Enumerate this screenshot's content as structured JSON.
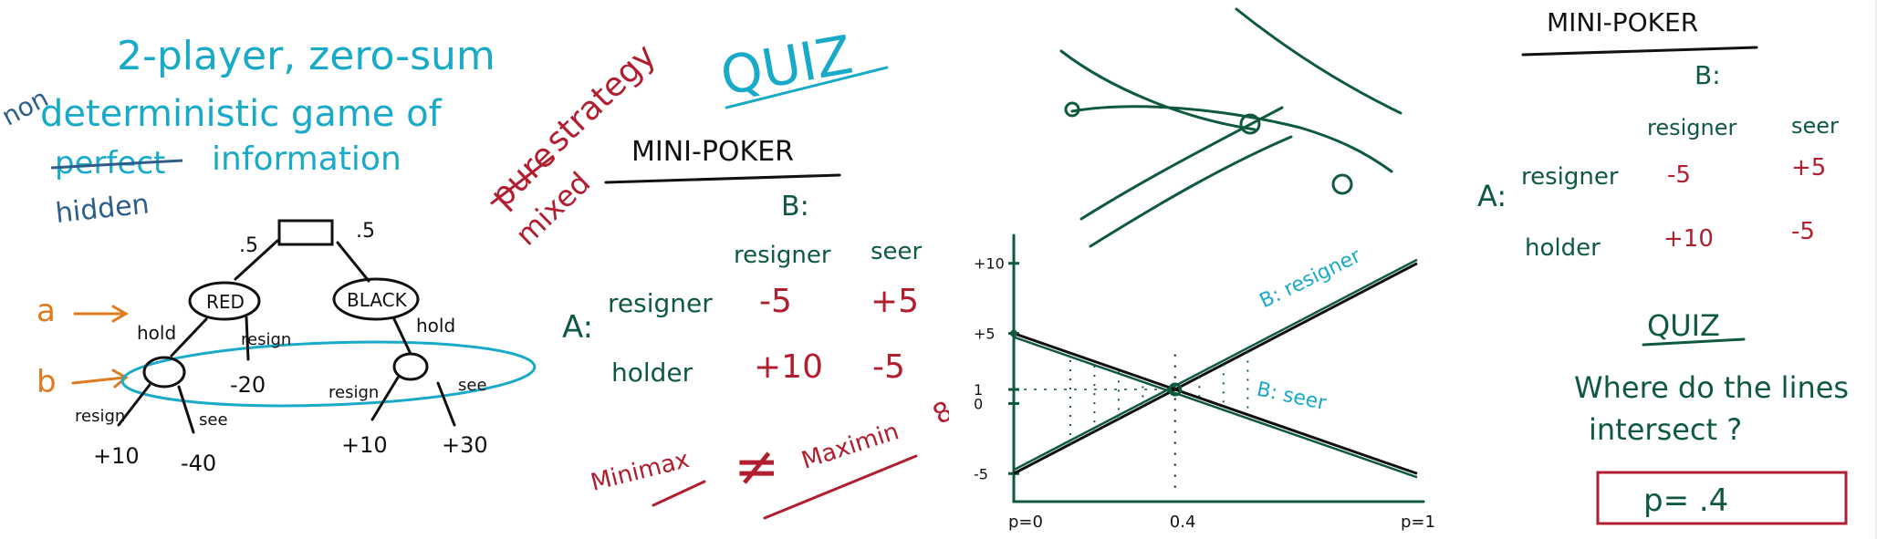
{
  "left": {
    "title_line1": "2-player, zero-sum",
    "title_line2_prefix": "non",
    "title_line2": "deterministic game of",
    "title_line3_struck": "perfect",
    "title_line3": "information",
    "hidden_note": "hidden",
    "pure_struck": "pure",
    "strategy": "strategy",
    "mixed": "mixed",
    "quiz": "QUIZ",
    "tree": {
      "root_prob_left": ".5",
      "root_prob_right": ".5",
      "node_red": "RED",
      "node_black": "BLACK",
      "label_a": "a",
      "label_b": "b",
      "red_hold": "hold",
      "red_resign": "resign",
      "red_resign_payoff": "-20",
      "black_hold": "hold",
      "b_resign_left": "resign",
      "b_see_left": "see",
      "b_resign_right": "resign",
      "b_see_right": "see",
      "payoff_1": "+10",
      "payoff_2": "-40",
      "payoff_3": "+10",
      "payoff_4": "+30"
    },
    "matrix": {
      "title": "MINI-POKER",
      "col_player": "B:",
      "row_player": "A:",
      "col_headers": [
        "resigner",
        "seer"
      ],
      "row_headers": [
        "resigner",
        "holder"
      ],
      "cells": [
        [
          "-5",
          "+5"
        ],
        [
          "+10",
          "-5"
        ]
      ]
    },
    "minimax": "Minimax",
    "not_equal": "≠",
    "maximin": "Maximin",
    "footnote": "8"
  },
  "chart_data": {
    "type": "line",
    "title": "",
    "xlabel": "",
    "ylabel": "",
    "x_tick_labels": [
      "p=0",
      "0.4",
      "p=1"
    ],
    "y_tick_labels": [
      "+10",
      "+5",
      "1",
      "0",
      "-5"
    ],
    "xlim": [
      0,
      1
    ],
    "ylim": [
      -7,
      12
    ],
    "series": [
      {
        "name": "B: resigner",
        "x": [
          0,
          1
        ],
        "y": [
          -5,
          10
        ]
      },
      {
        "name": "B: seer",
        "x": [
          0,
          1
        ],
        "y": [
          5,
          -5
        ]
      }
    ],
    "intersection": {
      "x": 0.4,
      "y": 1
    }
  },
  "right": {
    "matrix": {
      "title": "MINI-POKER",
      "col_player": "B:",
      "row_player": "A:",
      "col_headers": [
        "resigner",
        "seer"
      ],
      "row_headers": [
        "resigner",
        "holder"
      ],
      "cells": [
        [
          "-5",
          "+5"
        ],
        [
          "+10",
          "-5"
        ]
      ]
    },
    "quiz_title": "QUIZ",
    "question_line1": "Where do the lines",
    "question_line2": "intersect ?",
    "answer": "p= .4"
  },
  "colors": {
    "cyan": "#19a9c9",
    "green": "#0f5a3c",
    "red": "#b01e2f",
    "orange": "#e07a1e",
    "black": "#111111",
    "answer_box": "#b01e2f"
  }
}
